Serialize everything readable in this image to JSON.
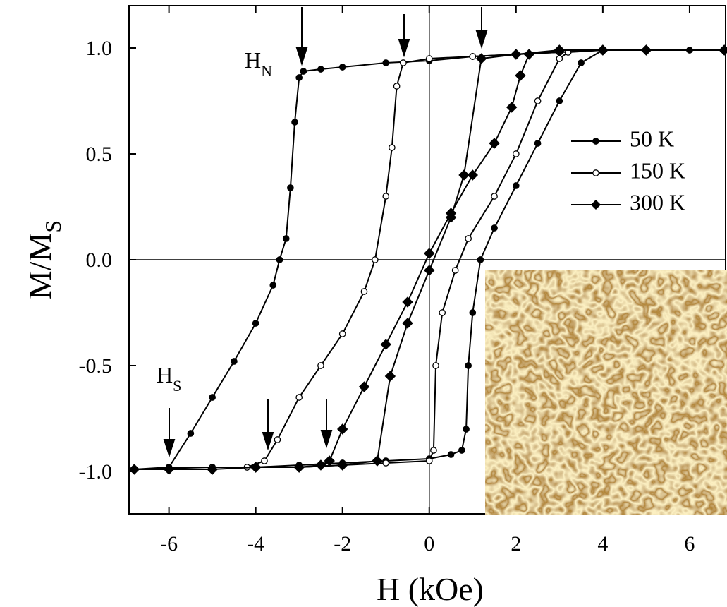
{
  "chart_data": {
    "type": "line",
    "xlabel": "H (kOe)",
    "ylabel": {
      "text": "M/M",
      "sub": "S"
    },
    "xlim": [
      -6.92,
      6.83
    ],
    "ylim": [
      -1.2,
      1.2
    ],
    "xticks": [
      -6,
      -4,
      -2,
      0,
      2,
      4,
      6
    ],
    "yticks": [
      {
        "value": -1,
        "label": "-1.0"
      },
      {
        "value": -0.5,
        "label": "-0.5"
      },
      {
        "value": 0,
        "label": "0.0"
      },
      {
        "value": 0.5,
        "label": "0.5"
      },
      {
        "value": 1,
        "label": "1.0"
      }
    ],
    "zero_lines": true,
    "legend_position": "upper right",
    "annotations": [
      {
        "text": "H",
        "sub": "N"
      },
      {
        "text": "H",
        "sub": "S"
      }
    ],
    "series": [
      {
        "name": "50 K",
        "color": "#000000",
        "marker": "filled-circle",
        "x": [
          6.8,
          6,
          5,
          4,
          3,
          2,
          1,
          0,
          -1,
          -2,
          -2.5,
          -2.9,
          -3.0,
          -3.1,
          -3.2,
          -3.3,
          -3.45,
          -3.6,
          -4.0,
          -4.5,
          -5.0,
          -5.5,
          -6.0,
          -6.8,
          -6,
          -5,
          -4,
          -3,
          -2,
          -1,
          0,
          0.5,
          0.75,
          0.85,
          0.9,
          1.0,
          1.18,
          1.5,
          2,
          2.5,
          3,
          3.5,
          4,
          5,
          6.8
        ],
        "values": [
          0.99,
          0.99,
          0.99,
          0.99,
          0.98,
          0.97,
          0.96,
          0.94,
          0.93,
          0.91,
          0.9,
          0.89,
          0.86,
          0.65,
          0.34,
          0.1,
          0,
          -0.12,
          -0.3,
          -0.48,
          -0.65,
          -0.82,
          -0.98,
          -0.99,
          -0.98,
          -0.98,
          -0.98,
          -0.97,
          -0.96,
          -0.95,
          -0.94,
          -0.92,
          -0.9,
          -0.8,
          -0.5,
          -0.25,
          0,
          0.15,
          0.35,
          0.55,
          0.75,
          0.93,
          0.99,
          0.99,
          0.99
        ]
      },
      {
        "name": "150 K",
        "color": "#000000",
        "marker": "open-circle",
        "x": [
          6.8,
          5,
          4,
          3,
          2,
          1,
          0,
          -0.6,
          -0.75,
          -0.86,
          -1.0,
          -1.25,
          -1.5,
          -2,
          -2.5,
          -3,
          -3.5,
          -3.8,
          -4.2,
          -5,
          -6.8,
          -5,
          -4,
          -3,
          -2,
          -1,
          0,
          0.1,
          0.15,
          0.3,
          0.6,
          0.9,
          1.5,
          2,
          2.5,
          3,
          3.2,
          4,
          5,
          6.8
        ],
        "values": [
          0.99,
          0.99,
          0.99,
          0.98,
          0.97,
          0.96,
          0.95,
          0.93,
          0.82,
          0.53,
          0.3,
          0,
          -0.15,
          -0.35,
          -0.5,
          -0.65,
          -0.85,
          -0.95,
          -0.98,
          -0.98,
          -0.99,
          -0.98,
          -0.98,
          -0.98,
          -0.97,
          -0.96,
          -0.95,
          -0.9,
          -0.5,
          -0.25,
          -0.05,
          0.1,
          0.3,
          0.5,
          0.75,
          0.95,
          0.98,
          0.99,
          0.99,
          0.99
        ]
      },
      {
        "name": "300 K",
        "color": "#000000",
        "marker": "filled-diamond",
        "x": [
          6.8,
          5,
          4,
          3,
          2.3,
          2.1,
          1.9,
          1.5,
          1.0,
          0.5,
          0,
          -0.5,
          -1,
          -1.5,
          -2,
          -2.3,
          -2.5,
          -3,
          -4,
          -5,
          -6,
          -6.8,
          -5,
          -4,
          -3,
          -2,
          -1.2,
          -0.9,
          -0.5,
          0,
          0.5,
          0.8,
          1.2,
          2,
          3,
          4,
          5,
          6.8
        ],
        "values": [
          0.99,
          0.99,
          0.99,
          0.99,
          0.97,
          0.87,
          0.72,
          0.55,
          0.4,
          0.22,
          0.03,
          -0.2,
          -0.4,
          -0.6,
          -0.8,
          -0.95,
          -0.97,
          -0.98,
          -0.98,
          -0.99,
          -0.99,
          -0.99,
          -0.99,
          -0.98,
          -0.98,
          -0.97,
          -0.95,
          -0.55,
          -0.3,
          -0.05,
          0.2,
          0.4,
          0.95,
          0.97,
          0.99,
          0.99,
          0.99,
          0.99
        ]
      }
    ]
  }
}
